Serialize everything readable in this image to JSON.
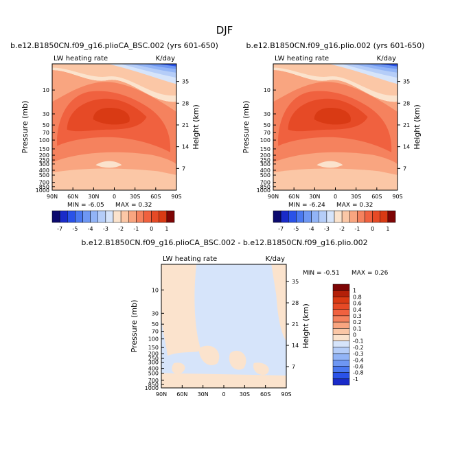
{
  "figure_title": "DJF",
  "colors": {
    "neg": [
      "#0c0a6e",
      "#1a2bc9",
      "#2a52e8",
      "#4a78f0",
      "#6e97f3",
      "#92b4f6",
      "#b5cdf8",
      "#d6e4fa"
    ],
    "pos": [
      "#fbe3cd",
      "#fbc7a6",
      "#f9a580",
      "#f5825e",
      "#f0613f",
      "#e64a26",
      "#d93a14",
      "#b32009",
      "#7e0505"
    ]
  },
  "chart_data": [
    {
      "type": "contour",
      "id": "panel1",
      "title": "b.e12.B1850CN.f09_g16.plioCA_BSC.002 (yrs 601-650)",
      "left_label": "LW heating rate",
      "right_label": "K/day",
      "xlabel": "",
      "ylabel": "Pressure (mb)",
      "y2label": "Height (km)",
      "x_ticks": [
        "90N",
        "60N",
        "30N",
        "0",
        "30S",
        "60S",
        "90S"
      ],
      "y_ticks": [
        "10",
        "30",
        "50",
        "70",
        "100",
        "150",
        "200",
        "250",
        "300",
        "400",
        "500",
        "700",
        "850",
        "1000"
      ],
      "y_tick_values": [
        10,
        30,
        50,
        70,
        100,
        150,
        200,
        250,
        300,
        400,
        500,
        700,
        850,
        1000
      ],
      "y2_ticks": [
        "35",
        "28",
        "21",
        "14",
        "7"
      ],
      "y2_tick_values": [
        35,
        28,
        21,
        14,
        7
      ],
      "pressure_range": [
        3,
        1000
      ],
      "min_text": "MIN =   -6.05",
      "max_text": "MAX =    0.32",
      "min": -6.05,
      "max": 0.32
    },
    {
      "type": "contour",
      "id": "panel2",
      "title": "b.e12.B1850CN.f09_g16.plio.002 (yrs 601-650)",
      "left_label": "LW heating rate",
      "right_label": "K/day",
      "xlabel": "",
      "ylabel": "Pressure (mb)",
      "y2label": "Height (km)",
      "x_ticks": [
        "90N",
        "60N",
        "30N",
        "0",
        "30S",
        "60S",
        "90S"
      ],
      "y_ticks": [
        "10",
        "30",
        "50",
        "70",
        "100",
        "150",
        "200",
        "250",
        "300",
        "400",
        "500",
        "700",
        "850",
        "1000"
      ],
      "y_tick_values": [
        10,
        30,
        50,
        70,
        100,
        150,
        200,
        250,
        300,
        400,
        500,
        700,
        850,
        1000
      ],
      "y2_ticks": [
        "35",
        "28",
        "21",
        "14",
        "7"
      ],
      "y2_tick_values": [
        35,
        28,
        21,
        14,
        7
      ],
      "pressure_range": [
        3,
        1000
      ],
      "min_text": "MIN =   -6.24",
      "max_text": "MAX =    0.32",
      "min": -6.24,
      "max": 0.32
    },
    {
      "type": "contour",
      "id": "panel3",
      "title": "b.e12.B1850CN.f09_g16.plioCA_BSC.002 - b.e12.B1850CN.f09_g16.plio.002",
      "left_label": "LW heating rate",
      "right_label": "K/day",
      "xlabel": "",
      "ylabel": "Pressure (mb)",
      "y2label": "Height (km)",
      "x_ticks": [
        "90N",
        "60N",
        "30N",
        "0",
        "30S",
        "60S",
        "90S"
      ],
      "y_ticks": [
        "10",
        "30",
        "50",
        "70",
        "100",
        "150",
        "200",
        "250",
        "300",
        "400",
        "500",
        "700",
        "850",
        "1000"
      ],
      "y_tick_values": [
        10,
        30,
        50,
        70,
        100,
        150,
        200,
        250,
        300,
        400,
        500,
        700,
        850,
        1000
      ],
      "y2_ticks": [
        "35",
        "28",
        "21",
        "14",
        "7"
      ],
      "y2_tick_values": [
        35,
        28,
        21,
        14,
        7
      ],
      "pressure_range": [
        3,
        1000
      ],
      "min_text": "MIN =   -0.51",
      "max_text": "MAX =    0.26",
      "min": -0.51,
      "max": 0.26
    }
  ],
  "colorbar_top": {
    "labels": [
      "-7",
      "-5",
      "-4",
      "-3",
      "-2",
      "-1",
      "0",
      "1"
    ],
    "levels": [
      -7,
      -6,
      -5,
      -4.5,
      -4,
      -3.5,
      -3,
      -2.5,
      -2,
      -1.5,
      -1,
      -0.5,
      0,
      0.5,
      1
    ],
    "colors": [
      "#0c0a6e",
      "#1a2bc9",
      "#2a52e8",
      "#4a78f0",
      "#6e97f3",
      "#92b4f6",
      "#b5cdf8",
      "#d6e4fa",
      "#fbe3cd",
      "#fbc7a6",
      "#f9a580",
      "#f5825e",
      "#f0613f",
      "#e64a26",
      "#d93a14",
      "#7e0505"
    ]
  },
  "colorbar_bottom": {
    "labels": [
      "1",
      "0.8",
      "0.6",
      "0.4",
      "0.3",
      "0.2",
      "0.1",
      "0",
      "-0.1",
      "-0.2",
      "-0.3",
      "-0.4",
      "-0.6",
      "-0.8",
      "-1"
    ],
    "colors": [
      "#7e0505",
      "#b32009",
      "#d93a14",
      "#e64a26",
      "#f0613f",
      "#f5825e",
      "#f9a580",
      "#fbc7a6",
      "#fbe3cd",
      "#d6e4fa",
      "#b5cdf8",
      "#92b4f6",
      "#6e97f3",
      "#4a78f0",
      "#2a52e8",
      "#1a2bc9"
    ]
  }
}
